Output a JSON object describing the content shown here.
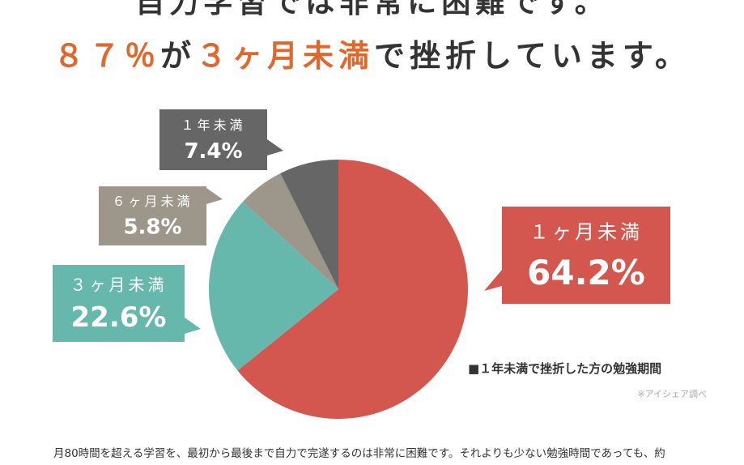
{
  "headline": {
    "line1": "自力学習では非常に困難です。",
    "line2": [
      "８７％",
      "が",
      "３ヶ月未満",
      "で挫折しています。"
    ]
  },
  "chart_data": {
    "type": "pie",
    "categories": [
      "１ヶ月未満",
      "３ヶ月未満",
      "６ヶ月未満",
      "１年未満"
    ],
    "values": [
      64.2,
      22.6,
      5.8,
      7.4
    ],
    "value_labels": [
      "64.2%",
      "22.6%",
      "5.8%",
      "7.4%"
    ],
    "colors": [
      "#d4574f",
      "#66b8ac",
      "#9c978a",
      "#666666"
    ],
    "legend": "■１年未満で挫折した方の勉強期間",
    "source": "※アイシェア調べ"
  },
  "body_text": "月80時間を超える学習を、最初から最後まで自力で完遂するのは非常に困難です。それよりも少ない勉強時間であっても、約"
}
